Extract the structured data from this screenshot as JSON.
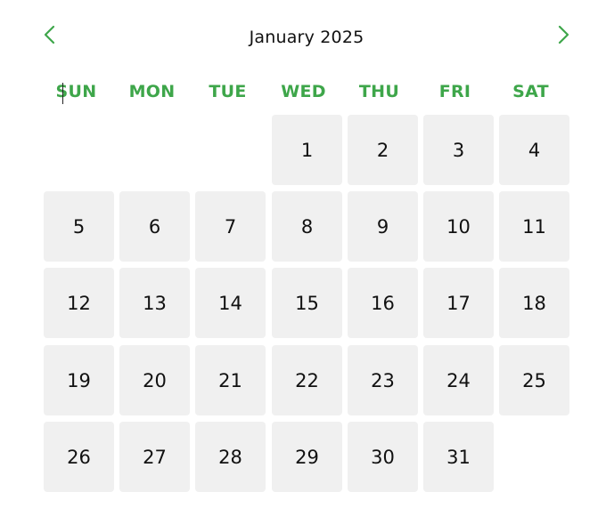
{
  "calendar": {
    "title": "January 2025",
    "prev_icon": "chevron-left-icon",
    "next_icon": "chevron-right-icon",
    "accent_color": "#3ea64a",
    "day_bg_color": "#f0f0f0",
    "weekdays": [
      "SUN",
      "MON",
      "TUE",
      "WED",
      "THU",
      "FRI",
      "SAT"
    ],
    "first_weekday_index": 3,
    "days": [
      "1",
      "2",
      "3",
      "4",
      "5",
      "6",
      "7",
      "8",
      "9",
      "10",
      "11",
      "12",
      "13",
      "14",
      "15",
      "16",
      "17",
      "18",
      "19",
      "20",
      "21",
      "22",
      "23",
      "24",
      "25",
      "26",
      "27",
      "28",
      "29",
      "30",
      "31"
    ]
  }
}
